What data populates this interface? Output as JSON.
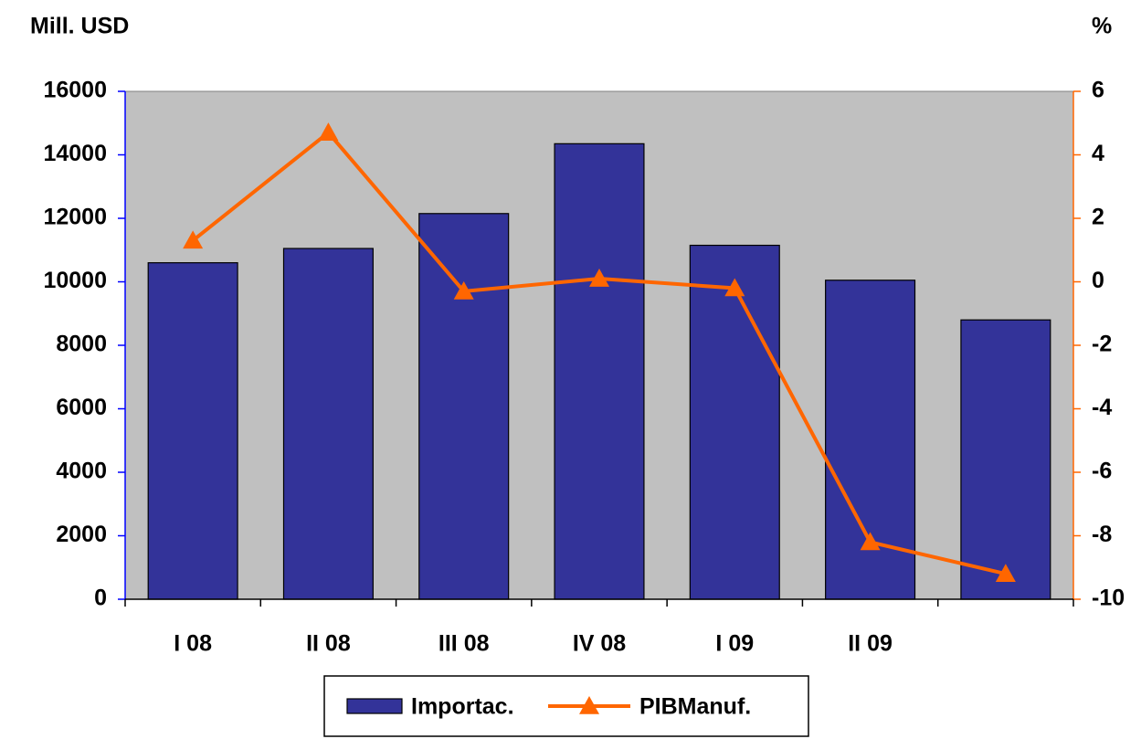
{
  "chart_data": {
    "type": "bar",
    "y_label": "Mill. USD",
    "y2_label": "%",
    "categories": [
      "I 08",
      "II 08",
      "III 08",
      "IV 08",
      "I 09",
      "II 09",
      null
    ],
    "series": [
      {
        "name": "Importac.",
        "type": "bar",
        "color": "#333399",
        "values": [
          10600,
          11050,
          12150,
          14350,
          11150,
          10050,
          8800
        ]
      },
      {
        "name": "PIBManuf.",
        "type": "line",
        "axis": "y2",
        "color": "#ff6600",
        "values": [
          1.3,
          4.7,
          -0.3,
          0.1,
          -0.2,
          -8.2,
          -9.2
        ]
      }
    ],
    "ylim": [
      0,
      16000
    ],
    "yticks": [
      0,
      2000,
      4000,
      6000,
      8000,
      10000,
      12000,
      14000,
      16000
    ],
    "y2lim": [
      -10,
      6
    ],
    "y2ticks": [
      -10,
      -8,
      -6,
      -4,
      -2,
      0,
      2,
      4,
      6
    ],
    "plot_background": "#c0c0c0",
    "legend": "bottom"
  }
}
